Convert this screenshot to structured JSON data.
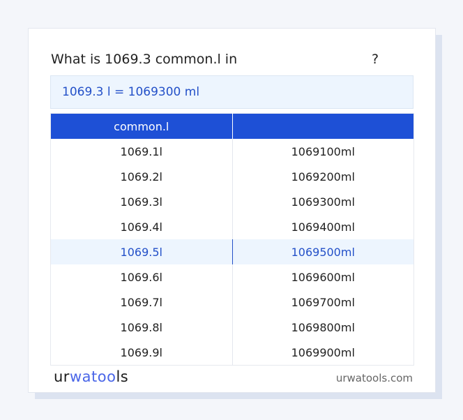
{
  "question": {
    "text": "What is 1069.3 common.l in",
    "suffix": "?"
  },
  "result": "1069.3 l = 1069300 ml",
  "table": {
    "headers": [
      "common.l",
      ""
    ],
    "rows": [
      [
        "1069.1l",
        "1069100ml"
      ],
      [
        "1069.2l",
        "1069200ml"
      ],
      [
        "1069.3l",
        "1069300ml"
      ],
      [
        "1069.4l",
        "1069400ml"
      ],
      [
        "1069.5l",
        "1069500ml"
      ],
      [
        "1069.6l",
        "1069600ml"
      ],
      [
        "1069.7l",
        "1069700ml"
      ],
      [
        "1069.8l",
        "1069800ml"
      ],
      [
        "1069.9l",
        "1069900ml"
      ]
    ],
    "highlighted_row": 4
  },
  "footer": {
    "logo": "urwatools",
    "logo_parts": [
      "ur",
      "wa",
      "too",
      "ls"
    ],
    "site": "urwatools.com"
  },
  "colors": {
    "accent": "#1e50d6",
    "highlight_bg": "#edf5fe",
    "highlight_text": "#2350c8"
  }
}
